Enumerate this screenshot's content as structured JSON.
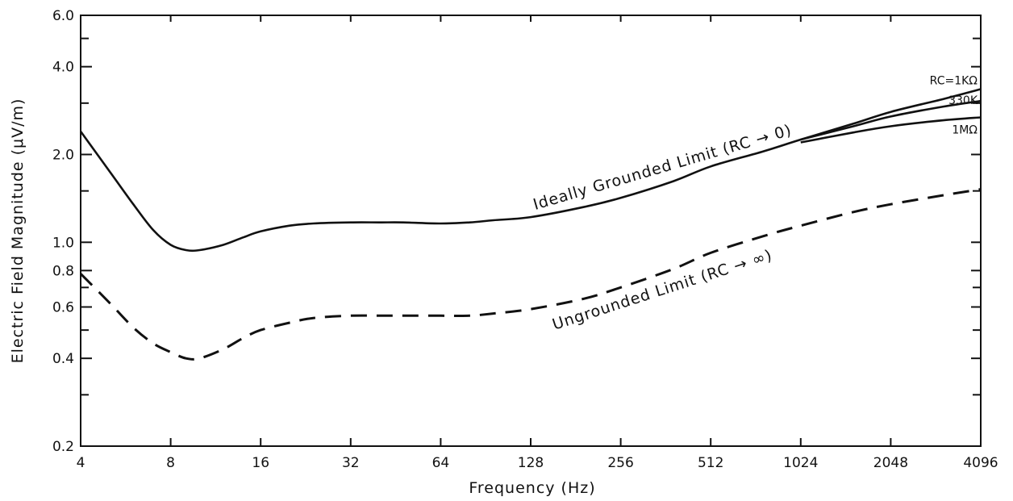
{
  "chart_data": {
    "type": "line",
    "title": "",
    "xlabel": "Frequency (Hz)",
    "ylabel": "Electric Field Magnitude (μV/m)",
    "x_scale": "log2",
    "y_scale": "log",
    "xlim": [
      4,
      4096
    ],
    "ylim": [
      0.2,
      6.0
    ],
    "x_ticks": [
      4,
      8,
      16,
      32,
      64,
      128,
      256,
      512,
      1024,
      2048,
      4096
    ],
    "x_tick_labels": [
      "4",
      "8",
      "16",
      "32",
      "64",
      "128",
      "256",
      "512",
      "1024",
      "2048",
      "4096"
    ],
    "y_ticks": [
      0.2,
      0.4,
      0.6,
      0.8,
      1.0,
      2.0,
      4.0,
      6.0
    ],
    "y_tick_labels": [
      "0.2",
      "0.4",
      "0.6",
      "0.8",
      "1.0",
      "2.0",
      "4.0",
      "6.0"
    ],
    "y_minor_ticks": [
      0.3,
      0.5,
      0.7,
      1.5,
      3.0,
      5.0
    ],
    "grid": false,
    "series": [
      {
        "name": "Ideally Grounded Limit (RC → 0)",
        "style": "solid",
        "x": [
          4,
          5,
          6,
          7,
          8,
          9,
          10,
          12,
          14,
          16,
          20,
          24,
          32,
          40,
          48,
          64,
          80,
          96,
          128,
          192,
          256,
          384,
          512,
          768,
          1024,
          1536,
          2048,
          3072,
          4096
        ],
        "y": [
          2.4,
          1.75,
          1.35,
          1.1,
          0.98,
          0.94,
          0.94,
          0.98,
          1.04,
          1.09,
          1.14,
          1.16,
          1.17,
          1.17,
          1.17,
          1.16,
          1.17,
          1.19,
          1.22,
          1.32,
          1.42,
          1.62,
          1.82,
          2.05,
          2.25,
          2.55,
          2.8,
          3.1,
          3.35
        ]
      },
      {
        "name": "330K",
        "style": "solid",
        "x": [
          1024,
          1536,
          2048,
          3072,
          4096
        ],
        "y": [
          2.25,
          2.5,
          2.7,
          2.92,
          3.05
        ]
      },
      {
        "name": "1MΩ",
        "style": "solid",
        "x": [
          1024,
          1536,
          2048,
          3072,
          4096
        ],
        "y": [
          2.2,
          2.38,
          2.5,
          2.62,
          2.68
        ]
      },
      {
        "name": "Ungrounded Limit (RC → ∞)",
        "style": "dashed",
        "x": [
          4,
          5,
          6,
          7,
          8,
          9,
          10,
          12,
          14,
          16,
          20,
          24,
          32,
          40,
          48,
          64,
          80,
          96,
          128,
          192,
          256,
          384,
          512,
          768,
          1024,
          1536,
          2048,
          3072,
          4096
        ],
        "y": [
          0.78,
          0.62,
          0.51,
          0.45,
          0.42,
          0.4,
          0.4,
          0.43,
          0.47,
          0.5,
          0.53,
          0.55,
          0.56,
          0.56,
          0.56,
          0.56,
          0.56,
          0.57,
          0.59,
          0.64,
          0.7,
          0.81,
          0.92,
          1.05,
          1.14,
          1.27,
          1.35,
          1.45,
          1.52
        ]
      }
    ],
    "annotations": [
      {
        "text": "Ideally Grounded Limit (RC → 0)",
        "series": 0
      },
      {
        "text": "Ungrounded Limit (RC → ∞)",
        "series": 3
      },
      {
        "text": "RC=1KΩ",
        "series": 0
      },
      {
        "text": "330K",
        "series": 1
      },
      {
        "text": "1MΩ",
        "series": 2
      }
    ]
  }
}
